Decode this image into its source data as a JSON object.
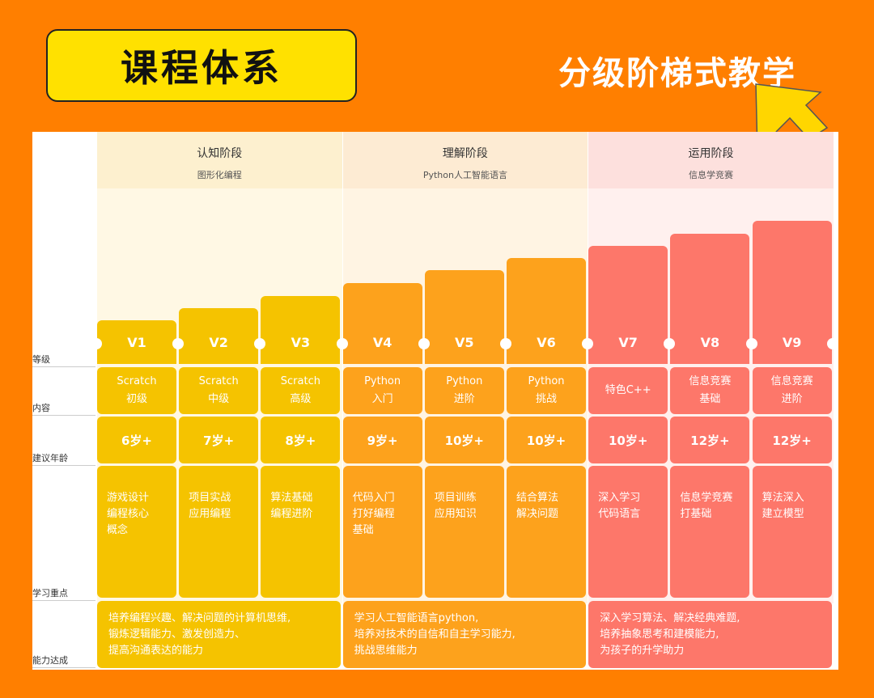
{
  "title": "课程体系",
  "subtitle": "分级阶梯式教学",
  "colors": {
    "background": "#ff7f00",
    "title_box": "#ffe100",
    "arrow": "#ffd600",
    "phase1_cell": "#f5c300",
    "phase2_cell": "#fda21c",
    "phase3_cell": "#fd776a"
  },
  "row_labels": {
    "level": "等级",
    "content": "内容",
    "age": "建议年龄",
    "focus": "学习重点",
    "ability": "能力达成"
  },
  "phases": [
    {
      "title": "认知阶段",
      "subtitle": "图形化编程",
      "ability": [
        "培养编程兴趣、解决问题的计算机思维,",
        "锻炼逻辑能力、激发创造力、",
        "提高沟通表达的能力"
      ]
    },
    {
      "title": "理解阶段",
      "subtitle": "Python人工智能语言",
      "ability": [
        "学习人工智能语言python,",
        "培养对技术的自信和自主学习能力,",
        "挑战思维能力"
      ]
    },
    {
      "title": "运用阶段",
      "subtitle": "信息学竞赛",
      "ability": [
        "深入学习算法、解决经典难题,",
        "培养抽象思考和建模能力,",
        "为孩子的升学助力"
      ]
    }
  ],
  "levels": [
    {
      "name": "V1",
      "content": [
        "Scratch",
        "初级"
      ],
      "age": "6岁+",
      "focus": [
        "游戏设计",
        "编程核心",
        "概念"
      ]
    },
    {
      "name": "V2",
      "content": [
        "Scratch",
        "中级"
      ],
      "age": "7岁+",
      "focus": [
        "项目实战",
        "应用编程"
      ]
    },
    {
      "name": "V3",
      "content": [
        "Scratch",
        "高级"
      ],
      "age": "8岁+",
      "focus": [
        "算法基础",
        "编程进阶"
      ]
    },
    {
      "name": "V4",
      "content": [
        "Python",
        "入门"
      ],
      "age": "9岁+",
      "focus": [
        "代码入门",
        "打好编程",
        "基础"
      ]
    },
    {
      "name": "V5",
      "content": [
        "Python",
        "进阶"
      ],
      "age": "10岁+",
      "focus": [
        "项目训练",
        "应用知识"
      ]
    },
    {
      "name": "V6",
      "content": [
        "Python",
        "挑战"
      ],
      "age": "10岁+",
      "focus": [
        "结合算法",
        "解决问题"
      ]
    },
    {
      "name": "V7",
      "content": [
        "特色C++"
      ],
      "age": "10岁+",
      "focus": [
        "深入学习",
        "代码语言"
      ]
    },
    {
      "name": "V8",
      "content": [
        "信息竞赛",
        "基础"
      ],
      "age": "12岁+",
      "focus": [
        "信息学竞赛",
        "打基础"
      ]
    },
    {
      "name": "V9",
      "content": [
        "信息竞赛",
        "进阶"
      ],
      "age": "12岁+",
      "focus": [
        "算法深入",
        "建立模型"
      ]
    }
  ]
}
